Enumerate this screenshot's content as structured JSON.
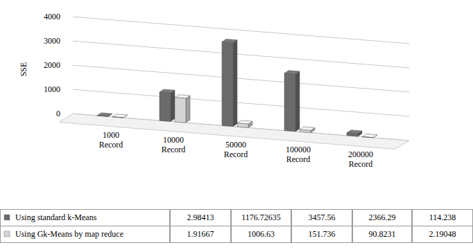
{
  "chart_data": {
    "type": "bar",
    "y_label": "SSE",
    "categories": [
      "1000 Record",
      "10000 Record",
      "50000 Record",
      "100000 Record",
      "200000 Record"
    ],
    "series": [
      {
        "name": "Using standard k-Means",
        "color": "#6b6b6b",
        "values": [
          2.98413,
          1176.72635,
          3457.56,
          2366.29,
          114.238
        ]
      },
      {
        "name": "Using Gk-Means by map reduce",
        "color": "#d4d4d4",
        "values": [
          1.91667,
          1006.63,
          151.736,
          90.8231,
          2.19048
        ]
      }
    ],
    "ylim": [
      0,
      4000
    ],
    "yticks": [
      0,
      1000,
      2000,
      3000,
      4000
    ],
    "grid": true
  }
}
